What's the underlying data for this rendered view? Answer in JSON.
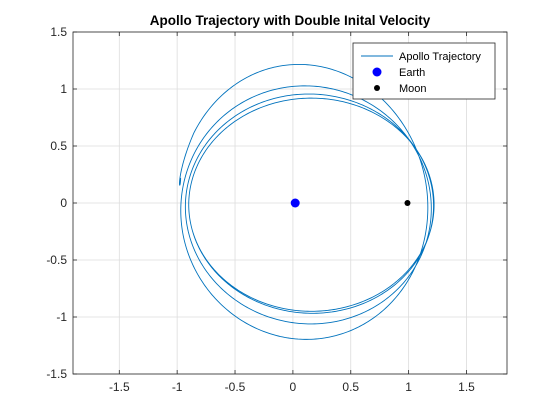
{
  "chart_data": {
    "type": "line",
    "title": "Apollo Trajectory with Double Inital Velocity",
    "xlabel": "",
    "ylabel": "",
    "xlim": [
      -1.9,
      1.85
    ],
    "ylim": [
      -1.5,
      1.5
    ],
    "x_ticks": [
      -1.5,
      -1,
      -0.5,
      0,
      0.5,
      1,
      1.5
    ],
    "x_tick_labels": [
      "-1.5",
      "-1",
      "-0.5",
      "0",
      "0.5",
      "1",
      "1.5"
    ],
    "y_ticks": [
      -1.5,
      -1,
      -0.5,
      0,
      0.5,
      1,
      1.5
    ],
    "y_tick_labels": [
      "-1.5",
      "-1",
      "-0.5",
      "0",
      "0.5",
      "1",
      "1.5"
    ],
    "grid": true,
    "legend_position": "top-right",
    "series": [
      {
        "name": "Apollo Trajectory",
        "kind": "line",
        "color": "#0072BD",
        "orbit_loops": [
          {
            "xmin": -1.0,
            "xmax": 1.15,
            "ymin": -1.29,
            "ymax": 1.28
          },
          {
            "xmin": -0.97,
            "xmax": 1.18,
            "ymin": -1.17,
            "ymax": 1.05
          },
          {
            "xmin": -0.93,
            "xmax": 1.21,
            "ymin": -1.03,
            "ymax": 0.97
          },
          {
            "xmin": -0.9,
            "xmax": 1.22,
            "ymin": -0.95,
            "ymax": 0.92
          }
        ],
        "start": {
          "x": -0.97,
          "y": 0.22
        }
      },
      {
        "name": "Earth",
        "kind": "marker",
        "color": "#0000FF",
        "points": [
          {
            "x": 0.02,
            "y": 0.0
          }
        ]
      },
      {
        "name": "Moon",
        "kind": "marker",
        "color": "#000000",
        "points": [
          {
            "x": 0.99,
            "y": 0.0
          }
        ]
      }
    ]
  }
}
